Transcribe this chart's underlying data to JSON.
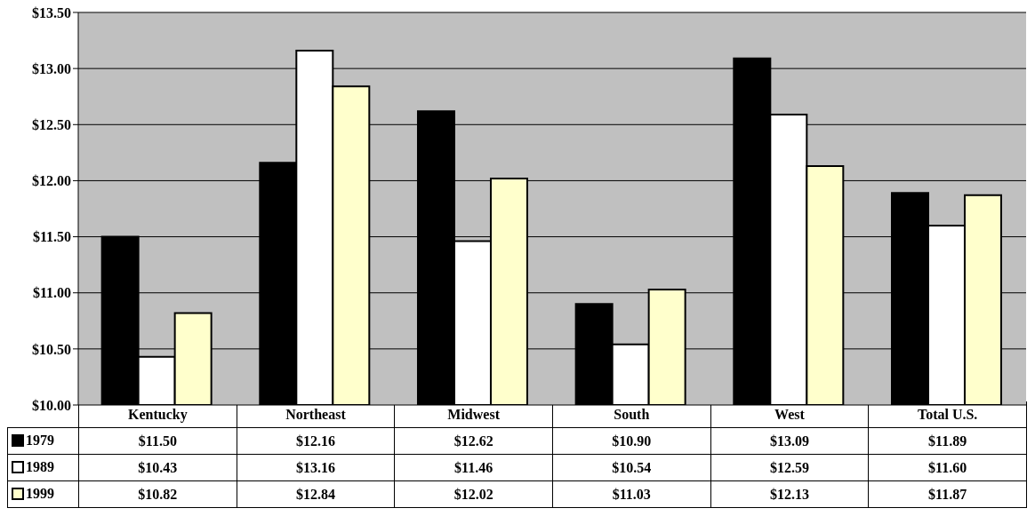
{
  "chart_data": {
    "type": "bar",
    "categories": [
      "Kentucky",
      "Northeast",
      "Midwest",
      "South",
      "West",
      "Total U.S."
    ],
    "series": [
      {
        "name": "1979",
        "color": "#000000",
        "values": [
          11.5,
          12.16,
          12.62,
          10.9,
          13.09,
          11.89
        ],
        "value_labels": [
          "$11.50",
          "$12.16",
          "$12.62",
          "$10.90",
          "$13.09",
          "$11.89"
        ]
      },
      {
        "name": "1989",
        "color": "#ffffff",
        "values": [
          10.43,
          13.16,
          11.46,
          10.54,
          12.59,
          11.6
        ],
        "value_labels": [
          "$10.43",
          "$13.16",
          "$11.46",
          "$10.54",
          "$12.59",
          "$11.60"
        ]
      },
      {
        "name": "1999",
        "color": "#ffffcc",
        "values": [
          10.82,
          12.84,
          12.02,
          11.03,
          12.13,
          11.87
        ],
        "value_labels": [
          "$10.82",
          "$12.84",
          "$12.02",
          "$11.03",
          "$12.13",
          "$11.87"
        ]
      }
    ],
    "ylim": [
      10,
      13.5
    ],
    "yticks": [
      {
        "value": 10,
        "label": "$10.00"
      },
      {
        "value": 10.5,
        "label": "$10.50"
      },
      {
        "value": 11,
        "label": "$11.00"
      },
      {
        "value": 11.5,
        "label": "$11.50"
      },
      {
        "value": 12,
        "label": "$12.00"
      },
      {
        "value": 12.5,
        "label": "$12.50"
      },
      {
        "value": 13,
        "label": "$13.00"
      },
      {
        "value": 13.5,
        "label": "$13.50"
      }
    ],
    "grid": "y",
    "legend": "bottom left"
  }
}
